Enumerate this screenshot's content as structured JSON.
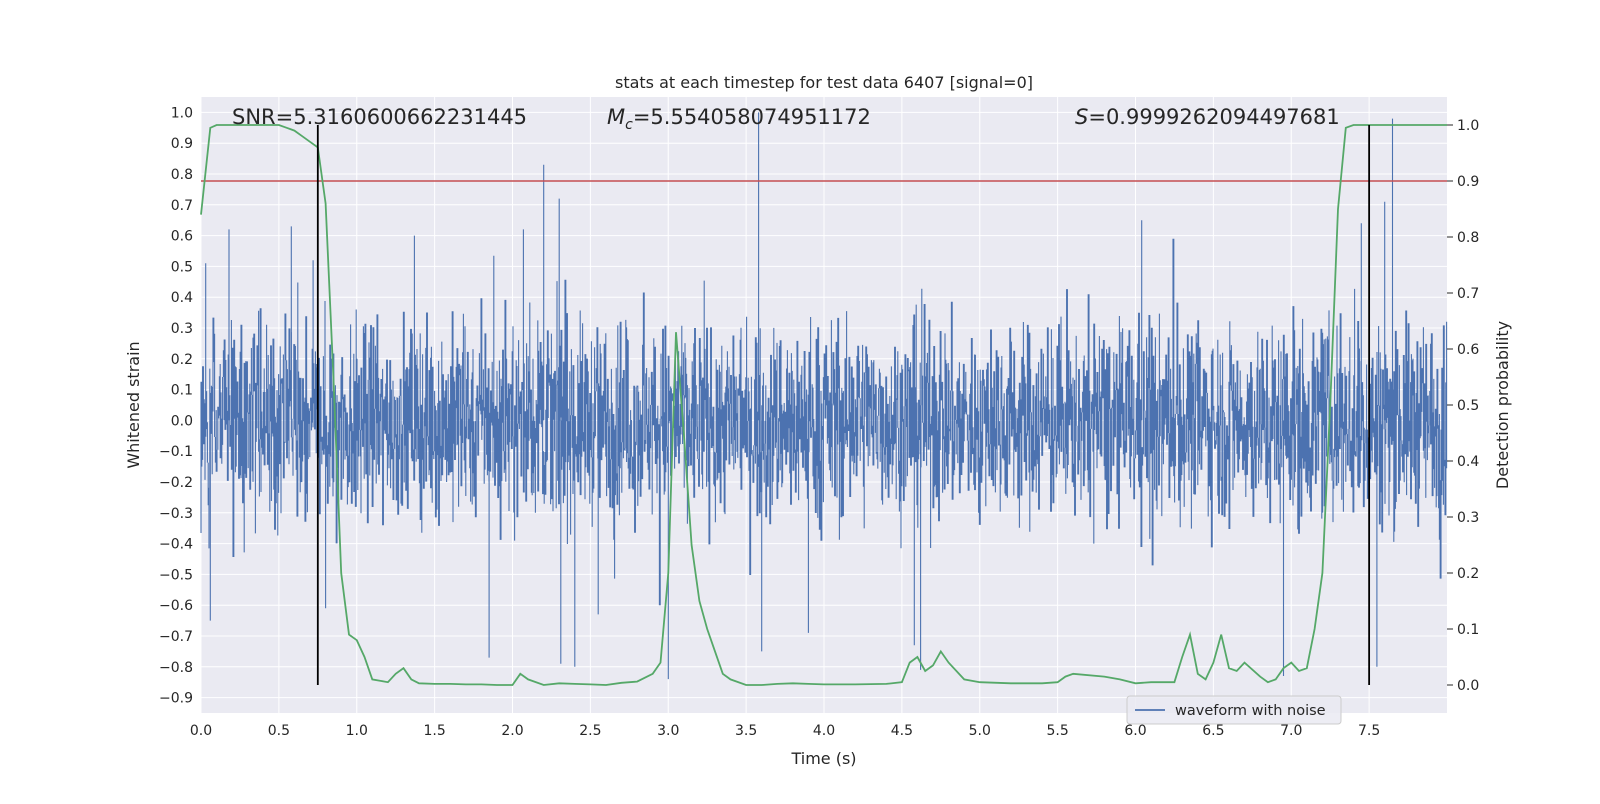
{
  "chart_data": {
    "type": "line",
    "title": "stats at each timestep for test data 6407 [signal=0]",
    "xlabel": "Time (s)",
    "ylabel_left": "Whitened strain",
    "ylabel_right": "Detection probability",
    "xlim": [
      0.0,
      8.0
    ],
    "ylim_left": [
      -0.95,
      1.05
    ],
    "ylim_right": [
      -0.05,
      1.05
    ],
    "x_ticks": [
      "0.0",
      "0.5",
      "1.0",
      "1.5",
      "2.0",
      "2.5",
      "3.0",
      "3.5",
      "4.0",
      "4.5",
      "5.0",
      "5.5",
      "6.0",
      "6.5",
      "7.0",
      "7.5"
    ],
    "x_tick_values": [
      0.0,
      0.5,
      1.0,
      1.5,
      2.0,
      2.5,
      3.0,
      3.5,
      4.0,
      4.5,
      5.0,
      5.5,
      6.0,
      6.5,
      7.0,
      7.5
    ],
    "y_left_ticks": [
      "1.0",
      "0.9",
      "0.8",
      "0.7",
      "0.6",
      "0.5",
      "0.4",
      "0.3",
      "0.2",
      "0.1",
      "0.0",
      "−0.1",
      "−0.2",
      "−0.3",
      "−0.4",
      "−0.5",
      "−0.6",
      "−0.7",
      "−0.8",
      "−0.9"
    ],
    "y_left_tick_values": [
      1.0,
      0.9,
      0.8,
      0.7,
      0.6,
      0.5,
      0.4,
      0.3,
      0.2,
      0.1,
      0.0,
      -0.1,
      -0.2,
      -0.3,
      -0.4,
      -0.5,
      -0.6,
      -0.7,
      -0.8,
      -0.9
    ],
    "y_right_ticks": [
      "1.0",
      "0.9",
      "0.8",
      "0.7",
      "0.6",
      "0.5",
      "0.4",
      "0.3",
      "0.2",
      "0.1",
      "0.0"
    ],
    "y_right_tick_values": [
      1.0,
      0.9,
      0.8,
      0.7,
      0.6,
      0.5,
      0.4,
      0.3,
      0.2,
      0.1,
      0.0
    ],
    "grid": true,
    "legend": {
      "position": "lower-right",
      "entries": [
        "waveform with noise"
      ]
    },
    "annotations": {
      "snr": "SNR=5.3160600662231445",
      "mc_symbol": "M",
      "mc_subscript": "c",
      "mc_value": "=5.554058074951172",
      "s_symbol": "S",
      "s_value": "=0.9999262094497681"
    },
    "threshold": {
      "axis": "right",
      "value": 0.9
    },
    "vertical_markers": [
      0.75,
      7.5
    ],
    "waveform": {
      "name": "waveform with noise",
      "time_range": [
        0.0,
        8.0
      ],
      "typical_amplitude": 0.28,
      "spikes": [
        {
          "t": 0.03,
          "y": 0.51
        },
        {
          "t": 0.06,
          "y": -0.65
        },
        {
          "t": 0.18,
          "y": 0.62
        },
        {
          "t": 0.58,
          "y": 0.63
        },
        {
          "t": 0.72,
          "y": 0.52
        },
        {
          "t": 0.8,
          "y": -0.61
        },
        {
          "t": 1.37,
          "y": 0.6
        },
        {
          "t": 1.85,
          "y": -0.77
        },
        {
          "t": 2.07,
          "y": 0.62
        },
        {
          "t": 2.2,
          "y": 0.83
        },
        {
          "t": 2.3,
          "y": 0.72
        },
        {
          "t": 2.31,
          "y": -0.79
        },
        {
          "t": 2.4,
          "y": -0.8
        },
        {
          "t": 2.55,
          "y": -0.63
        },
        {
          "t": 3.0,
          "y": -0.84
        },
        {
          "t": 3.58,
          "y": 1.0
        },
        {
          "t": 3.6,
          "y": -0.75
        },
        {
          "t": 3.9,
          "y": -0.69
        },
        {
          "t": 4.58,
          "y": -0.73
        },
        {
          "t": 4.62,
          "y": -0.81
        },
        {
          "t": 6.04,
          "y": 0.65
        },
        {
          "t": 6.95,
          "y": -0.83
        },
        {
          "t": 7.45,
          "y": 0.64
        },
        {
          "t": 7.55,
          "y": -0.8
        },
        {
          "t": 7.65,
          "y": 0.98
        },
        {
          "t": 7.6,
          "y": 0.71
        }
      ]
    },
    "probability_series": {
      "x": [
        0.0,
        0.06,
        0.1,
        0.2,
        0.3,
        0.4,
        0.5,
        0.55,
        0.6,
        0.65,
        0.7,
        0.75,
        0.8,
        0.85,
        0.9,
        0.95,
        1.0,
        1.05,
        1.1,
        1.2,
        1.25,
        1.3,
        1.35,
        1.4,
        1.5,
        1.6,
        1.7,
        1.8,
        1.9,
        2.0,
        2.05,
        2.1,
        2.2,
        2.3,
        2.4,
        2.5,
        2.6,
        2.7,
        2.8,
        2.9,
        2.95,
        3.0,
        3.05,
        3.1,
        3.15,
        3.2,
        3.25,
        3.3,
        3.35,
        3.4,
        3.5,
        3.6,
        3.7,
        3.8,
        3.9,
        4.0,
        4.2,
        4.4,
        4.5,
        4.55,
        4.6,
        4.65,
        4.7,
        4.75,
        4.8,
        4.9,
        5.0,
        5.2,
        5.4,
        5.5,
        5.55,
        5.6,
        5.8,
        5.9,
        6.0,
        6.1,
        6.2,
        6.25,
        6.3,
        6.35,
        6.4,
        6.45,
        6.5,
        6.55,
        6.6,
        6.65,
        6.7,
        6.8,
        6.85,
        6.9,
        6.95,
        7.0,
        7.05,
        7.1,
        7.15,
        7.2,
        7.25,
        7.3,
        7.35,
        7.4,
        7.45,
        7.5,
        7.55,
        7.6,
        7.7,
        7.8,
        7.9,
        8.0
      ],
      "values": [
        0.84,
        0.995,
        1.0,
        1.0,
        1.0,
        1.0,
        1.0,
        0.995,
        0.99,
        0.98,
        0.97,
        0.96,
        0.86,
        0.55,
        0.2,
        0.09,
        0.08,
        0.05,
        0.01,
        0.005,
        0.02,
        0.03,
        0.01,
        0.003,
        0.002,
        0.002,
        0.001,
        0.001,
        0.0,
        0.0,
        0.02,
        0.01,
        0.0,
        0.003,
        0.002,
        0.001,
        0.0,
        0.004,
        0.006,
        0.02,
        0.04,
        0.2,
        0.63,
        0.45,
        0.25,
        0.15,
        0.1,
        0.06,
        0.02,
        0.01,
        0.0,
        0.0,
        0.002,
        0.003,
        0.002,
        0.001,
        0.001,
        0.002,
        0.005,
        0.04,
        0.05,
        0.025,
        0.035,
        0.06,
        0.04,
        0.01,
        0.005,
        0.003,
        0.003,
        0.005,
        0.015,
        0.02,
        0.015,
        0.01,
        0.003,
        0.005,
        0.005,
        0.005,
        0.05,
        0.09,
        0.02,
        0.01,
        0.04,
        0.09,
        0.03,
        0.025,
        0.04,
        0.015,
        0.005,
        0.01,
        0.03,
        0.04,
        0.025,
        0.03,
        0.1,
        0.2,
        0.5,
        0.85,
        0.995,
        1.0,
        1.0,
        1.0,
        1.0,
        1.0,
        1.0,
        1.0,
        1.0,
        1.0
      ]
    },
    "colors": {
      "background": "#eaeaf2",
      "grid": "#ffffff",
      "waveform": "#4c72b0",
      "probability": "#55a868",
      "threshold": "#c44e52",
      "marker": "#000000"
    }
  }
}
